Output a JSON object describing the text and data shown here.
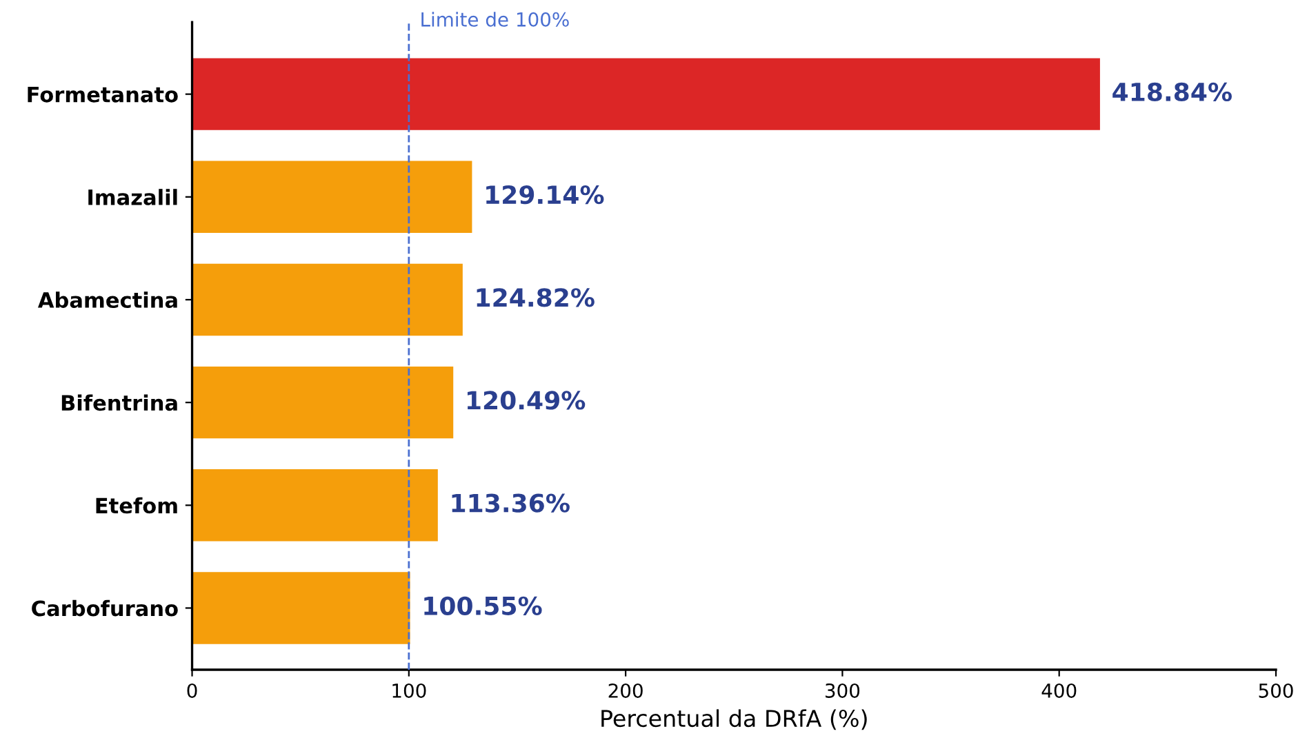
{
  "chart_data": {
    "type": "bar",
    "orientation": "horizontal",
    "xlabel": "Percentual da DRfA (%)",
    "categories": [
      "Formetanato",
      "Imazalil",
      "Abamectina",
      "Bifentrina",
      "Etefom",
      "Carbofurano"
    ],
    "values": [
      418.84,
      129.14,
      124.82,
      120.49,
      113.36,
      100.55
    ],
    "colors": [
      "#dc2626",
      "#f59e0b",
      "#f59e0b",
      "#f59e0b",
      "#f59e0b",
      "#f59e0b"
    ],
    "value_labels": [
      "418.84%",
      "129.14%",
      "124.82%",
      "120.49%",
      "113.36%",
      "100.55%"
    ],
    "xlim": [
      0,
      500
    ],
    "xticks": [
      0,
      100,
      200,
      300,
      400,
      500
    ],
    "ref_lines": [
      {
        "axis": "x",
        "value": 100,
        "label": "Limite de 100%",
        "color": "#4a6fd1",
        "line_style": "dashed"
      }
    ],
    "grid": false,
    "legend": false
  }
}
